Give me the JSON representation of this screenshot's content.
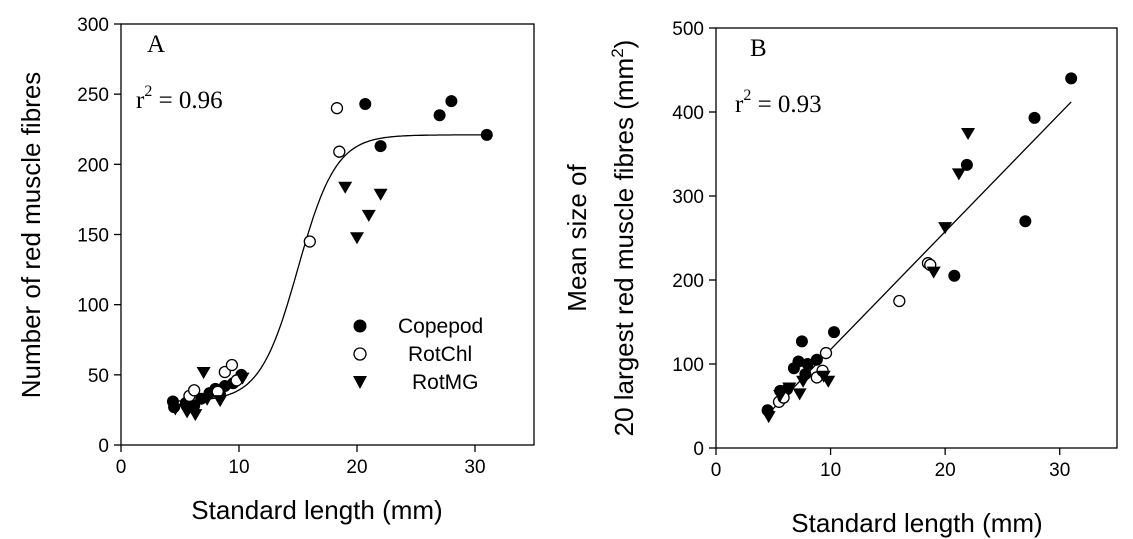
{
  "chart_data": [
    {
      "type": "scatter",
      "panel_label": "A",
      "xlabel": "Standard length (mm)",
      "ylabel": "Number of red muscle fibres",
      "xlim": [
        0,
        35
      ],
      "ylim": [
        0,
        300
      ],
      "xticks": [
        0,
        10,
        20,
        30
      ],
      "yticks": [
        0,
        50,
        100,
        150,
        200,
        250,
        300
      ],
      "annotation": {
        "base": "r",
        "sup": "2",
        "rest": " = 0.96"
      },
      "legend_position": "center-right",
      "fit": {
        "type": "sigmoid",
        "min": 31,
        "max": 221,
        "x50": 15,
        "k": 0.62
      },
      "series": [
        {
          "name": "Copepod",
          "marker": "filled-circle",
          "points": [
            [
              4.4,
              31
            ],
            [
              4.5,
              27
            ],
            [
              5.5,
              30
            ],
            [
              6.2,
              28
            ],
            [
              6.8,
              33
            ],
            [
              7.5,
              37
            ],
            [
              8.0,
              40
            ],
            [
              8.4,
              36
            ],
            [
              8.8,
              42
            ],
            [
              9.5,
              44
            ],
            [
              10.2,
              50
            ],
            [
              20.7,
              243
            ],
            [
              22.0,
              213
            ],
            [
              27.0,
              235
            ],
            [
              28.0,
              245
            ],
            [
              31.0,
              221
            ]
          ]
        },
        {
          "name": "RotChl",
          "marker": "open-circle",
          "points": [
            [
              5.8,
              35
            ],
            [
              6.2,
              39
            ],
            [
              8.2,
              38
            ],
            [
              8.8,
              52
            ],
            [
              9.4,
              57
            ],
            [
              9.8,
              46
            ],
            [
              16.0,
              145
            ],
            [
              18.5,
              209
            ],
            [
              18.3,
              240
            ]
          ]
        },
        {
          "name": "RotMG",
          "marker": "filled-triangle-down",
          "points": [
            [
              4.6,
              26
            ],
            [
              5.6,
              24
            ],
            [
              6.3,
              22
            ],
            [
              7.0,
              52
            ],
            [
              7.3,
              33
            ],
            [
              8.4,
              32
            ],
            [
              10.3,
              48
            ],
            [
              19.0,
              184
            ],
            [
              20.0,
              148
            ],
            [
              21.0,
              164
            ],
            [
              22.0,
              179
            ]
          ]
        }
      ],
      "legend": [
        "Copepod",
        "RotChl",
        "RotMG"
      ]
    },
    {
      "type": "scatter",
      "panel_label": "B",
      "xlabel": "Standard length (mm)",
      "ylabel_lines": [
        "Mean size of",
        "20 largest red muscle fibres (mm",
        "2",
        ")"
      ],
      "xlim": [
        0,
        35
      ],
      "ylim": [
        0,
        500
      ],
      "xticks": [
        0,
        10,
        20,
        30
      ],
      "yticks": [
        0,
        100,
        200,
        300,
        400,
        500
      ],
      "annotation": {
        "base": "r",
        "sup": "2",
        "rest": " = 0.93"
      },
      "fit": {
        "type": "linear",
        "x": [
          4.5,
          31
        ],
        "y": [
          40,
          412
        ]
      },
      "series": [
        {
          "name": "Copepod",
          "marker": "filled-circle",
          "points": [
            [
              4.5,
              45
            ],
            [
              5.6,
              68
            ],
            [
              6.2,
              70
            ],
            [
              6.8,
              95
            ],
            [
              7.2,
              103
            ],
            [
              7.5,
              127
            ],
            [
              7.8,
              88
            ],
            [
              8.0,
              100
            ],
            [
              8.8,
              105
            ],
            [
              10.3,
              138
            ],
            [
              20.8,
              205
            ],
            [
              21.9,
              337
            ],
            [
              27.0,
              270
            ],
            [
              27.8,
              393
            ],
            [
              31.0,
              440
            ]
          ]
        },
        {
          "name": "RotChl",
          "marker": "open-circle",
          "points": [
            [
              5.5,
              55
            ],
            [
              5.9,
              60
            ],
            [
              8.8,
              84
            ],
            [
              9.3,
              92
            ],
            [
              9.6,
              113
            ],
            [
              16.0,
              175
            ],
            [
              18.5,
              220
            ],
            [
              18.7,
              218
            ]
          ]
        },
        {
          "name": "RotMG",
          "marker": "filled-triangle-down",
          "points": [
            [
              4.6,
              38
            ],
            [
              5.6,
              63
            ],
            [
              6.4,
              72
            ],
            [
              7.3,
              65
            ],
            [
              7.6,
              80
            ],
            [
              9.4,
              86
            ],
            [
              9.8,
              80
            ],
            [
              19.0,
              210
            ],
            [
              20.0,
              263
            ],
            [
              21.2,
              327
            ],
            [
              22.0,
              375
            ]
          ]
        }
      ]
    }
  ]
}
